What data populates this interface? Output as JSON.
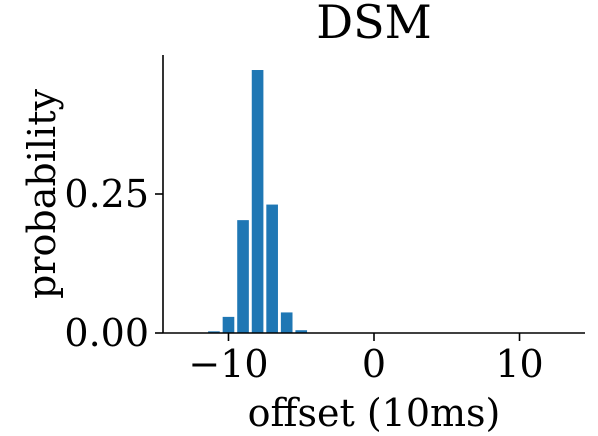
{
  "chart_data": {
    "type": "bar",
    "title": "DSM",
    "xlabel": "offset (10ms)",
    "ylabel": "probability",
    "xlim": [
      -14.5,
      14.5
    ],
    "ylim": [
      0,
      0.5
    ],
    "xticks": [
      -10,
      0,
      10
    ],
    "xtick_labels": [
      "−10",
      "0",
      "10"
    ],
    "yticks": [
      0.0,
      0.25
    ],
    "ytick_labels": [
      "0.00",
      "0.25"
    ],
    "bar_color": "#1f77b4",
    "grid": false,
    "x": [
      -11,
      -10,
      -9,
      -8,
      -7,
      -6,
      -5
    ],
    "values": [
      0.003,
      0.029,
      0.203,
      0.473,
      0.231,
      0.037,
      0.005
    ]
  }
}
